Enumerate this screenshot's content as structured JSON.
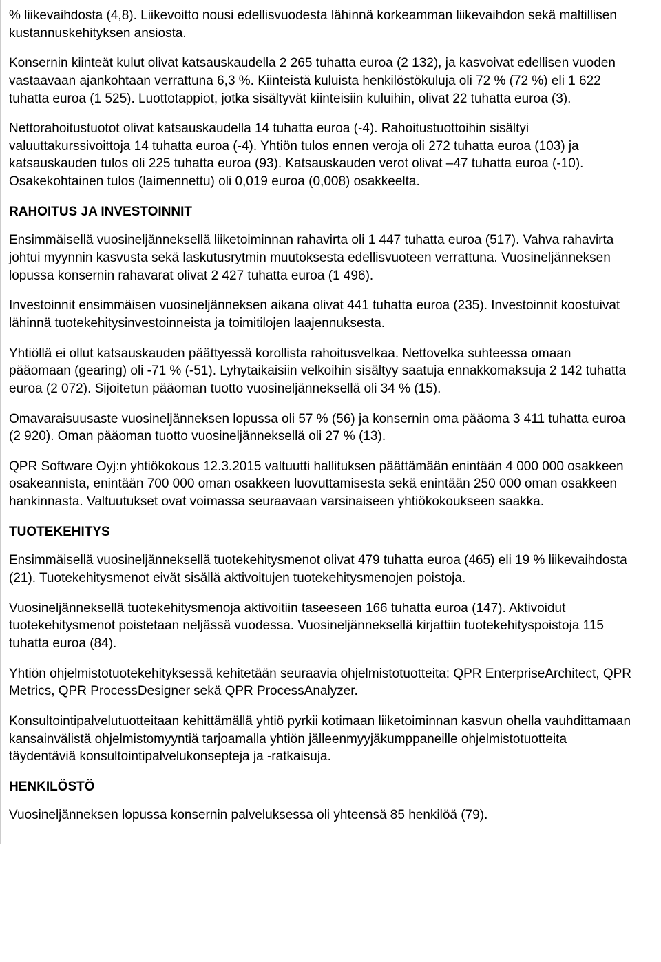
{
  "paragraphs": {
    "p1": "% liikevaihdosta (4,8). Liikevoitto nousi edellisvuodesta lähinnä korkeamman liikevaihdon sekä maltillisen kustannuskehityksen ansiosta.",
    "p2": "Konsernin kiinteät kulut olivat katsauskaudella 2 265 tuhatta euroa (2 132), ja kasvoivat edellisen vuoden vastaavaan ajankohtaan verrattuna 6,3 %. Kiinteistä kuluista henkilöstökuluja oli 72 % (72 %) eli 1 622 tuhatta euroa (1 525). Luottotappiot, jotka sisältyvät kiinteisiin kuluihin, olivat 22 tuhatta euroa (3).",
    "p3": "Nettorahoitustuotot olivat katsauskaudella 14 tuhatta euroa (-4). Rahoitustuottoihin sisältyi valuuttakurssivoittoja 14 tuhatta euroa (-4). Yhtiön tulos ennen veroja oli 272 tuhatta euroa (103) ja katsauskauden tulos oli 225 tuhatta euroa (93). Katsauskauden verot olivat –47 tuhatta euroa (-10). Osakekohtainen tulos (laimennettu) oli 0,019 euroa (0,008) osakkeelta."
  },
  "headings": {
    "h1": "RAHOITUS JA INVESTOINNIT",
    "h2": "TUOTEKEHITYS",
    "h3": "HENKILÖSTÖ"
  },
  "section1": {
    "p1": "Ensimmäisellä vuosineljänneksellä liiketoiminnan rahavirta oli 1 447 tuhatta euroa (517). Vahva rahavirta johtui myynnin kasvusta sekä laskutusrytmin muutoksesta edellisvuoteen verrattuna. Vuosineljänneksen lopussa konsernin rahavarat olivat 2 427 tuhatta euroa (1 496).",
    "p2": "Investoinnit ensimmäisen vuosineljänneksen aikana olivat 441 tuhatta euroa (235). Investoinnit koostuivat lähinnä tuotekehitysinvestoinneista ja toimitilojen laajennuksesta.",
    "p3": "Yhtiöllä ei ollut katsauskauden päättyessä korollista rahoitusvelkaa. Nettovelka suhteessa omaan pääomaan (gearing) oli -71 % (-51). Lyhytaikaisiin velkoihin sisältyy saatuja ennakkomaksuja 2 142 tuhatta euroa (2 072). Sijoitetun pääoman tuotto vuosineljänneksellä oli 34 % (15).",
    "p4": "Omavaraisuusaste vuosineljänneksen lopussa oli 57 % (56) ja konsernin oma pääoma 3 411 tuhatta euroa (2 920). Oman pääoman tuotto vuosineljänneksellä oli 27 % (13).",
    "p5": "QPR Software Oyj:n yhtiökokous 12.3.2015 valtuutti hallituksen päättämään enintään 4 000 000 osakkeen osakeannista, enintään 700 000 oman osakkeen luovuttamisesta sekä enintään 250 000 oman osakkeen hankinnasta. Valtuutukset ovat voimassa seuraavaan varsinaiseen yhtiökokoukseen saakka."
  },
  "section2": {
    "p1": "Ensimmäisellä vuosineljänneksellä tuotekehitysmenot olivat 479 tuhatta euroa (465) eli 19 % liikevaihdosta (21). Tuotekehitysmenot eivät sisällä aktivoitujen tuotekehitysmenojen poistoja.",
    "p2": "Vuosineljänneksellä tuotekehitysmenoja aktivoitiin taseeseen 166 tuhatta euroa (147). Aktivoidut tuotekehitysmenot poistetaan neljässä vuodessa. Vuosineljänneksellä kirjattiin tuotekehityspoistoja 115 tuhatta euroa (84).",
    "p3": "Yhtiön ohjelmistotuotekehityksessä kehitetään seuraavia ohjelmistotuotteita: QPR EnterpriseArchitect, QPR Metrics, QPR ProcessDesigner sekä QPR ProcessAnalyzer.",
    "p4": "Konsultointipalvelutuotteitaan kehittämällä yhtiö pyrkii kotimaan liiketoiminnan kasvun ohella vauhdittamaan kansainvälistä ohjelmistomyyntiä tarjoamalla yhtiön jälleenmyyjäkumppaneille ohjelmistotuotteita täydentäviä konsultointipalvelukonsepteja ja -ratkaisuja."
  },
  "section3": {
    "p1": "Vuosineljänneksen lopussa konsernin palveluksessa oli yhteensä 85 henkilöä (79)."
  }
}
